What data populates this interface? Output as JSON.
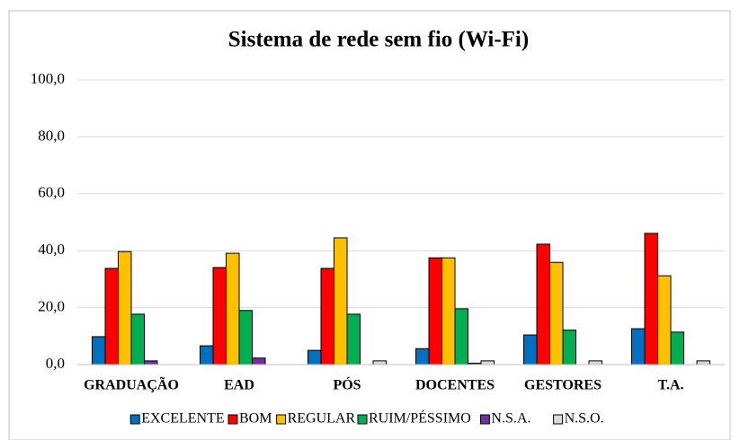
{
  "chart_data": {
    "type": "bar",
    "title": "Sistema de rede sem fio (Wi-Fi)",
    "categories": [
      "GRADUAÇÃO",
      "EAD",
      "PÓS",
      "DOCENTES",
      "GESTORES",
      "T.A."
    ],
    "series": [
      {
        "name": "EXCELENTE",
        "color": "#0070c0",
        "values": [
          9.8,
          6.6,
          5.0,
          5.6,
          10.4,
          12.6
        ]
      },
      {
        "name": "BOM",
        "color": "#ff0000",
        "values": [
          33.8,
          34.1,
          33.8,
          37.5,
          42.3,
          46.1
        ]
      },
      {
        "name": "REGULAR",
        "color": "#ffc000",
        "values": [
          39.7,
          39.1,
          44.5,
          37.5,
          35.9,
          31.2
        ]
      },
      {
        "name": "RUIM/PÉSSIMO",
        "color": "#00b050",
        "values": [
          17.7,
          19.0,
          17.7,
          19.6,
          12.1,
          11.4
        ]
      },
      {
        "name": "N.S.A.",
        "color": "#7030a0",
        "values": [
          1.3,
          2.3,
          0,
          0.5,
          0,
          0
        ]
      },
      {
        "name": "N.S.O.",
        "color": "#d9d9d9",
        "values": [
          0,
          0,
          1.3,
          1.3,
          1.3,
          1.3
        ]
      }
    ],
    "ylim": [
      0,
      100
    ],
    "yticks": [
      {
        "value": 0,
        "label": "0,0"
      },
      {
        "value": 20,
        "label": "20,0"
      },
      {
        "value": 40,
        "label": "40,0"
      },
      {
        "value": 60,
        "label": "60,0"
      },
      {
        "value": 80,
        "label": "80,0"
      },
      {
        "value": 100,
        "label": "100,0"
      }
    ],
    "grid": true,
    "legend": "bottom"
  }
}
